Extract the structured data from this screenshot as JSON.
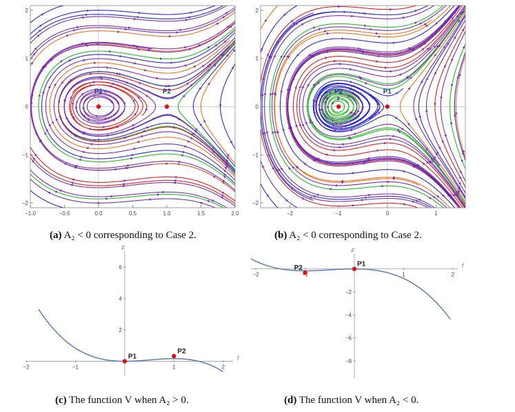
{
  "panels": {
    "a": {
      "caption_prefix": "(a)",
      "caption_text": "A₂ < 0 corresponding to Case 2.",
      "x_ticks": [
        "−1.0",
        "−0.5",
        "0.0",
        "0.5",
        "1.0",
        "1.5",
        "2.0"
      ],
      "y_ticks": [
        "2",
        "1",
        "0",
        "−1",
        "−2"
      ],
      "points": [
        {
          "label": "P1",
          "x": 0,
          "y": 0
        },
        {
          "label": "P2",
          "x": 1,
          "y": 0
        }
      ]
    },
    "b": {
      "caption_prefix": "(b)",
      "caption_text": "A₂ < 0 corresponding to Case 2.",
      "x_ticks": [
        "−2",
        "−1",
        "0",
        "1"
      ],
      "y_ticks": [
        "2",
        "1",
        "0",
        "−1",
        "−2"
      ],
      "points": [
        {
          "label": "P2",
          "x": -1,
          "y": 0
        },
        {
          "label": "P1",
          "x": 0,
          "y": 0
        }
      ]
    },
    "c": {
      "caption_prefix": "(c)",
      "caption_text": "The function V when A₂ > 0.",
      "ylabel": "F",
      "xlabel": "f",
      "x_ticks": [
        "−2",
        "−1",
        "1",
        "2"
      ],
      "y_ticks": [
        "6",
        "4",
        "2"
      ],
      "points": [
        {
          "label": "P1",
          "x": 0,
          "y": 0
        },
        {
          "label": "P2",
          "x": 1,
          "y": 0.33
        }
      ]
    },
    "d": {
      "caption_prefix": "(d)",
      "caption_text": "The function V when A₂ < 0.",
      "ylabel": "F",
      "xlabel": "f",
      "x_ticks": [
        "−2",
        "−1",
        "1",
        "2"
      ],
      "y_ticks": [
        "−2",
        "−4",
        "−6",
        "−8"
      ],
      "points": [
        {
          "label": "P2",
          "x": -1,
          "y": -0.33
        },
        {
          "label": "P1",
          "x": 0,
          "y": 0
        }
      ]
    }
  },
  "colors": {
    "stream_blue": "#2a2ad0",
    "stream_purple": "#7a2fb0",
    "stream_red": "#e02020",
    "stream_green": "#20c020",
    "stream_orange": "#f07020",
    "curve": "#5a7fb0",
    "point": "#e01010"
  }
}
